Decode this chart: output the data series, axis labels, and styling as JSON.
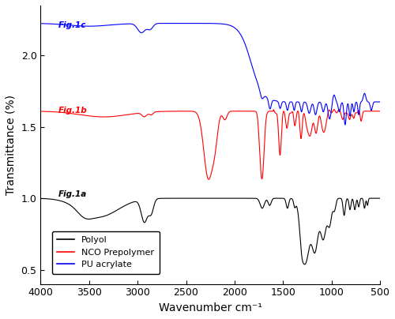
{
  "title": "",
  "xlabel": "Wavenumber cm⁻¹",
  "ylabel": "Transmittance (%)",
  "xlim": [
    4000,
    500
  ],
  "ylim": [
    0.4,
    2.35
  ],
  "yticks": [
    0.5,
    1.0,
    1.5,
    2.0
  ],
  "xticks": [
    4000,
    3500,
    3000,
    2500,
    2000,
    1500,
    1000,
    500
  ],
  "legend": [
    "Polyol",
    "NCO Prepolymer",
    "PU acrylate"
  ],
  "legend_colors": [
    "black",
    "red",
    "blue"
  ],
  "label_a": "Fig.1a",
  "label_b": "Fig.1b",
  "label_c": "Fig.1c",
  "label_a_color": "black",
  "label_b_color": "red",
  "label_c_color": "blue"
}
